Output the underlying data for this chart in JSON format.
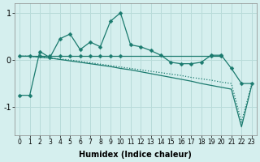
{
  "xlabel": "Humidex (Indice chaleur)",
  "ylabel": "",
  "background_color": "#d5efee",
  "grid_color": "#b8dbd9",
  "line_color": "#1a7a6e",
  "xlim": [
    -0.5,
    23.5
  ],
  "ylim": [
    -1.6,
    1.2
  ],
  "yticks": [
    -1,
    0,
    1
  ],
  "xticks": [
    0,
    1,
    2,
    3,
    4,
    5,
    6,
    7,
    8,
    9,
    10,
    11,
    12,
    13,
    14,
    15,
    16,
    17,
    18,
    19,
    20,
    21,
    22,
    23
  ],
  "series0_x": [
    0,
    1,
    2,
    3,
    4,
    5,
    6,
    7,
    8,
    9,
    10,
    11,
    12,
    13,
    14,
    15,
    16,
    17,
    18,
    19,
    20,
    21,
    22,
    23
  ],
  "series0_y": [
    -0.75,
    -0.75,
    0.18,
    0.05,
    0.45,
    0.55,
    0.22,
    0.38,
    0.28,
    0.82,
    1.0,
    0.32,
    0.28,
    0.2,
    0.1,
    -0.05,
    -0.08,
    -0.08,
    -0.05,
    0.1,
    0.1,
    -0.18,
    -0.5,
    -0.5
  ],
  "series1_x": [
    0,
    1,
    2,
    3,
    4,
    5,
    6,
    7,
    8,
    9,
    10,
    19,
    20
  ],
  "series1_y": [
    0.08,
    0.08,
    0.08,
    0.08,
    0.08,
    0.08,
    0.08,
    0.08,
    0.08,
    0.08,
    0.08,
    0.08,
    0.08
  ],
  "series2_x": [
    0,
    1,
    2,
    3,
    4,
    5,
    6,
    7,
    8,
    9,
    10,
    11,
    12,
    13,
    14,
    15,
    16,
    17,
    18,
    19,
    20,
    21,
    22,
    23
  ],
  "series2_y": [
    0.08,
    0.08,
    0.06,
    0.04,
    0.02,
    0.0,
    -0.03,
    -0.06,
    -0.09,
    -0.12,
    -0.15,
    -0.18,
    -0.21,
    -0.24,
    -0.27,
    -0.3,
    -0.33,
    -0.37,
    -0.4,
    -0.43,
    -0.47,
    -0.5,
    -1.32,
    -0.52
  ],
  "series3_x": [
    0,
    1,
    2,
    3,
    4,
    5,
    6,
    7,
    8,
    9,
    10,
    11,
    12,
    13,
    14,
    15,
    16,
    17,
    18,
    19,
    20,
    21,
    22,
    23
  ],
  "series3_y": [
    0.08,
    0.08,
    0.06,
    0.04,
    0.01,
    -0.02,
    -0.05,
    -0.08,
    -0.11,
    -0.14,
    -0.18,
    -0.21,
    -0.25,
    -0.29,
    -0.33,
    -0.37,
    -0.41,
    -0.45,
    -0.5,
    -0.54,
    -0.58,
    -0.62,
    -1.42,
    -0.55
  ]
}
